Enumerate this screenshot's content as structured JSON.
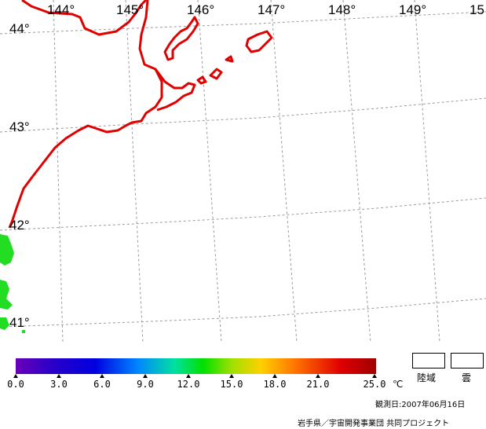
{
  "map": {
    "lon_labels": [
      "144°",
      "145°",
      "146°",
      "147°",
      "148°",
      "149°",
      "15"
    ],
    "lat_labels": [
      "44°",
      "43°",
      "42°",
      "41°"
    ],
    "coast_color": "#e00000",
    "grid_color": "#9a9a9a",
    "sst_color": "#22dd22"
  },
  "legend": {
    "ticks": [
      "0.0",
      "3.0",
      "6.0",
      "9.0",
      "12.0",
      "15.0",
      "18.0",
      "21.0",
      "25.0"
    ],
    "unit": "℃",
    "land_label": "陸域",
    "cloud_label": "雲"
  },
  "footer": {
    "observation": "観測日:2007年06月16日",
    "credit": "岩手県／宇宙開発事業団 共同プロジェクト"
  }
}
